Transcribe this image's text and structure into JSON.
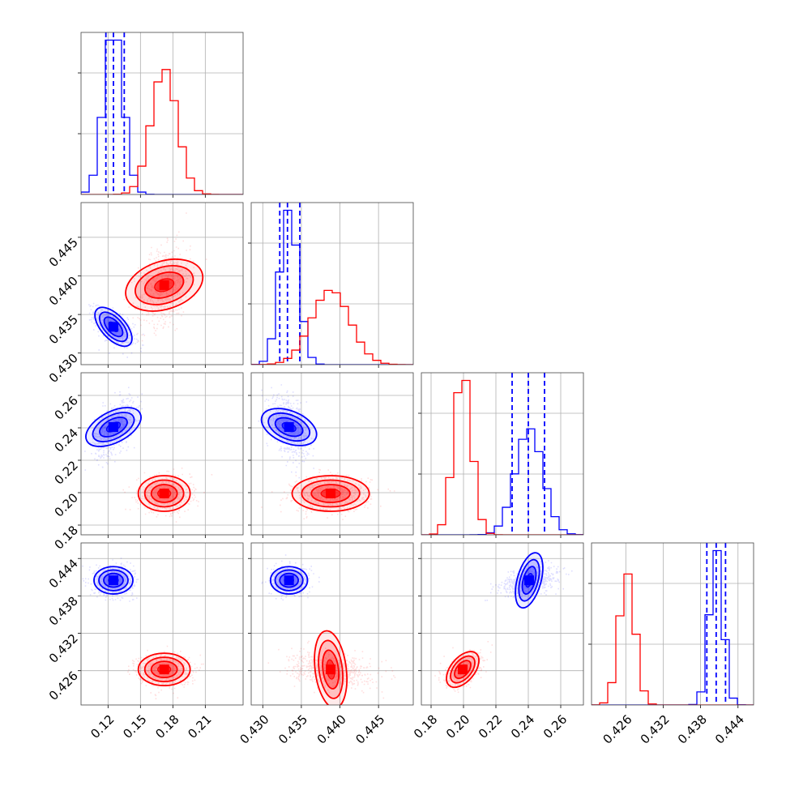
{
  "chart_data": {
    "type": "corner",
    "parameters": [
      {
        "id": "p0",
        "range": [
          0.095,
          0.245
        ],
        "ticks": [
          "0.12",
          "0.15",
          "0.18",
          "0.21"
        ]
      },
      {
        "id": "p1",
        "range": [
          0.4285,
          0.4495
        ],
        "ticks": [
          "0.430",
          "0.435",
          "0.440",
          "0.445"
        ]
      },
      {
        "id": "p2",
        "range": [
          0.174,
          0.274
        ],
        "ticks": [
          "0.18",
          "0.20",
          "0.22",
          "0.24",
          "0.26"
        ]
      },
      {
        "id": "p3",
        "range": [
          0.4205,
          0.4465
        ],
        "ticks": [
          "0.426",
          "0.432",
          "0.438",
          "0.444"
        ]
      }
    ],
    "grid": true,
    "series": [
      {
        "color": "#0000ff",
        "mean": [
          0.125,
          0.4334,
          0.2405,
          0.4405
        ],
        "std": [
          0.009,
          0.0012,
          0.0085,
          0.0011
        ],
        "correlations": {
          "0-1": -0.6,
          "0-2": 0.5,
          "0-3": 0.0,
          "1-2": -0.4,
          "1-3": 0.0,
          "2-3": 0.45
        },
        "quantile_lines": [
          [
            0.118,
            0.125,
            0.135
          ],
          [
            0.4322,
            0.4332,
            0.4348
          ],
          [
            0.23,
            0.24,
            0.25
          ],
          [
            0.439,
            0.4405,
            0.442
          ]
        ]
      },
      {
        "color": "#ff0000",
        "mean": [
          0.172,
          0.4388,
          0.1995,
          0.4262
        ],
        "std": [
          0.012,
          0.0025,
          0.0055,
          0.0013
        ],
        "correlations": {
          "0-1": 0.3,
          "0-2": 0.0,
          "0-3": 0.0,
          "1-2": 0.0,
          "1-3": -0.25,
          "2-3": 0.5
        },
        "quantile_lines": null
      }
    ]
  }
}
